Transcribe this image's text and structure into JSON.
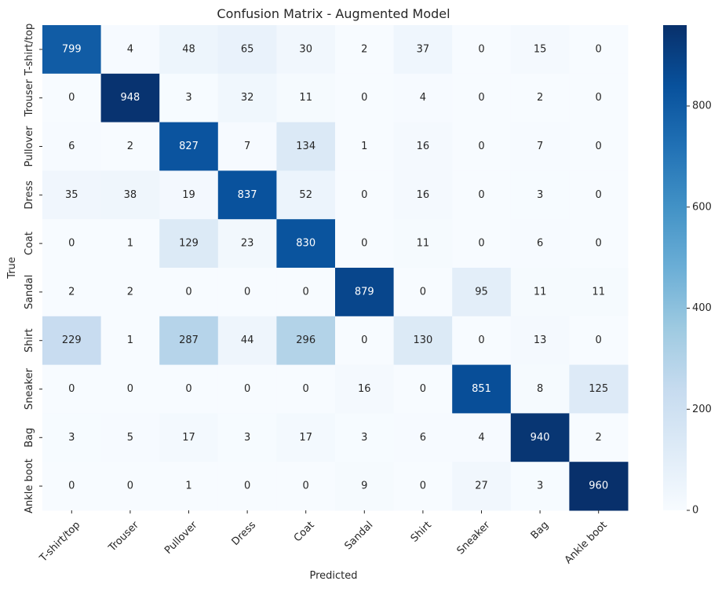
{
  "chart_data": {
    "type": "heatmap",
    "title": "Confusion Matrix - Augmented Model",
    "xlabel": "Predicted",
    "ylabel": "True",
    "x_categories": [
      "T-shirt/top",
      "Trouser",
      "Pullover",
      "Dress",
      "Coat",
      "Sandal",
      "Shirt",
      "Sneaker",
      "Bag",
      "Ankle boot"
    ],
    "y_categories": [
      "T-shirt/top",
      "Trouser",
      "Pullover",
      "Dress",
      "Coat",
      "Sandal",
      "Shirt",
      "Sneaker",
      "Bag",
      "Ankle boot"
    ],
    "values": [
      [
        799,
        4,
        48,
        65,
        30,
        2,
        37,
        0,
        15,
        0
      ],
      [
        0,
        948,
        3,
        32,
        11,
        0,
        4,
        0,
        2,
        0
      ],
      [
        6,
        2,
        827,
        7,
        134,
        1,
        16,
        0,
        7,
        0
      ],
      [
        35,
        38,
        19,
        837,
        52,
        0,
        16,
        0,
        3,
        0
      ],
      [
        0,
        1,
        129,
        23,
        830,
        0,
        11,
        0,
        6,
        0
      ],
      [
        2,
        2,
        0,
        0,
        0,
        879,
        0,
        95,
        11,
        11
      ],
      [
        229,
        1,
        287,
        44,
        296,
        0,
        130,
        0,
        13,
        0
      ],
      [
        0,
        0,
        0,
        0,
        0,
        16,
        0,
        851,
        8,
        125
      ],
      [
        3,
        5,
        17,
        3,
        17,
        3,
        6,
        4,
        940,
        2
      ],
      [
        0,
        0,
        1,
        0,
        0,
        9,
        0,
        27,
        3,
        960
      ]
    ],
    "colormap": "Blues",
    "value_range": [
      0,
      960
    ],
    "colorbar_ticks": [
      0,
      200,
      400,
      600,
      800
    ],
    "x_tick_rotation_deg": 45,
    "y_tick_rotation_deg": 90,
    "grid": false,
    "legend": "colorbar-right"
  }
}
